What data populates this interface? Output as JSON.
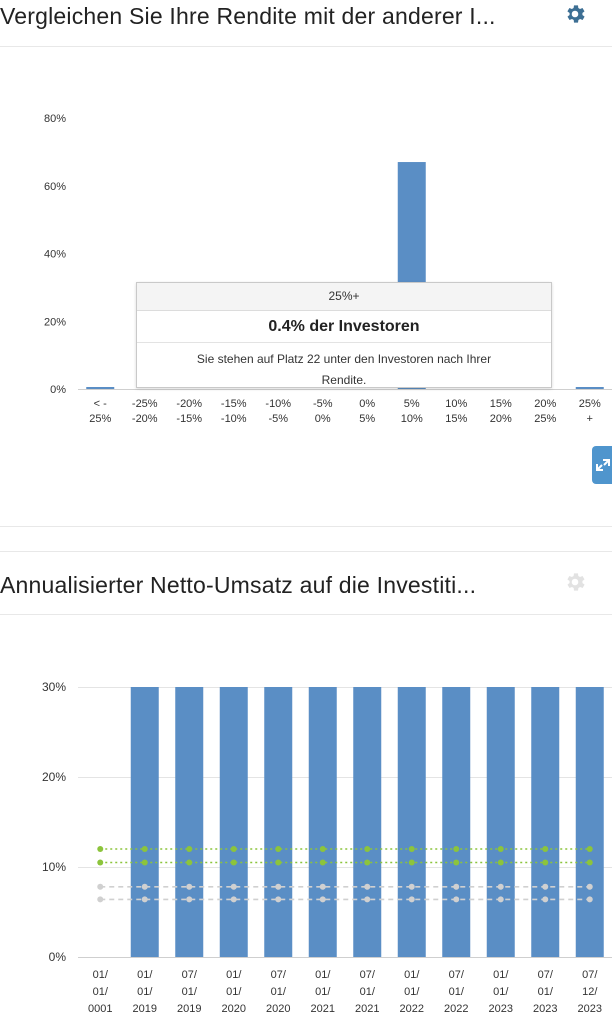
{
  "panel1": {
    "title": "Vergleichen Sie Ihre Rendite mit der anderer I...",
    "tooltip": {
      "header": "25%+",
      "value": "0.4% der Investoren",
      "description": "Sie stehen auf Platz 22 unter den Investoren nach Ihrer Rendite."
    }
  },
  "panel2": {
    "title": "Annualisierter Netto-Umsatz auf die Investiti..."
  },
  "colors": {
    "bar": "#5a8ec5",
    "green": "#8cc43c",
    "grey": "#d0d0d0",
    "gear_active": "#3d6f94",
    "gear_inactive": "#e2e2e2"
  },
  "icons": {
    "settings1": "gear-icon",
    "settings2": "gear-icon",
    "expand": "expand-icon"
  },
  "chart_data": [
    {
      "type": "bar",
      "categories": [
        [
          "< -",
          "25%"
        ],
        [
          "-25%",
          "-20%"
        ],
        [
          "-20%",
          "-15%"
        ],
        [
          "-15%",
          "-10%"
        ],
        [
          "-10%",
          "-5%"
        ],
        [
          "-5%",
          "0%"
        ],
        [
          "0%",
          "5%"
        ],
        [
          "5%",
          "10%"
        ],
        [
          "10%",
          "15%"
        ],
        [
          "15%",
          "20%"
        ],
        [
          "20%",
          "25%"
        ],
        [
          "25%",
          "+"
        ]
      ],
      "values": [
        0.3,
        0,
        0,
        0,
        0,
        0,
        0,
        67,
        0,
        0,
        0,
        0.4
      ],
      "yticks": [
        "0%",
        "20%",
        "40%",
        "60%",
        "80%"
      ],
      "ylim": [
        0,
        80
      ]
    },
    {
      "type": "bar",
      "categories": [
        [
          "01/",
          "01/",
          "0001"
        ],
        [
          "01/",
          "01/",
          "2019"
        ],
        [
          "07/",
          "01/",
          "2019"
        ],
        [
          "01/",
          "01/",
          "2020"
        ],
        [
          "07/",
          "01/",
          "2020"
        ],
        [
          "01/",
          "01/",
          "2021"
        ],
        [
          "07/",
          "01/",
          "2021"
        ],
        [
          "01/",
          "01/",
          "2022"
        ],
        [
          "07/",
          "01/",
          "2022"
        ],
        [
          "01/",
          "01/",
          "2023"
        ],
        [
          "07/",
          "01/",
          "2023"
        ],
        [
          "07/",
          "12/",
          "2023"
        ]
      ],
      "values": [
        0,
        30,
        30,
        30,
        30,
        30,
        30,
        30,
        30,
        30,
        30,
        30
      ],
      "yticks": [
        "0%",
        "10%",
        "20%",
        "30%"
      ],
      "ylim": [
        0,
        30
      ],
      "reference_lines": [
        {
          "style": "green",
          "value": 12
        },
        {
          "style": "green",
          "value": 10.5
        },
        {
          "style": "grey",
          "value": 7.8
        },
        {
          "style": "grey",
          "value": 6.4
        }
      ]
    }
  ]
}
